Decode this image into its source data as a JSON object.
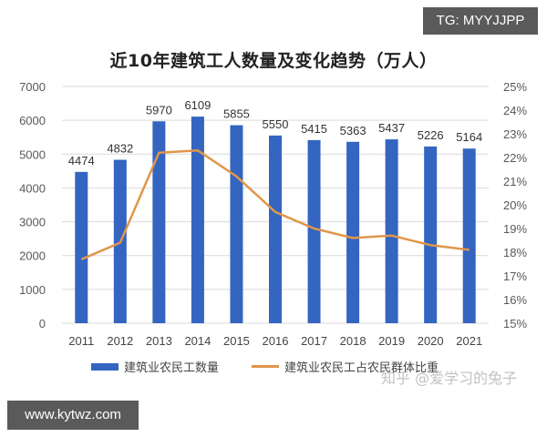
{
  "title": "近10年建筑工人数量及变化趋势（万人）",
  "badges": {
    "top_right": "TG: MYYJJPP",
    "bottom_left": "www.kytwz.com"
  },
  "watermark": "知乎 @爱学习的兔子",
  "colors": {
    "bar": "#3465c0",
    "line": "#e0964a",
    "grid": "#d9d9d9",
    "axis_text": "#595959"
  },
  "chart_data": {
    "type": "bar+line",
    "title": "近10年建筑工人数量及变化趋势（万人）",
    "categories": [
      "2011",
      "2012",
      "2013",
      "2014",
      "2015",
      "2016",
      "2017",
      "2018",
      "2019",
      "2020",
      "2021"
    ],
    "series": [
      {
        "name": "建筑业农民工数量",
        "type": "bar",
        "axis": "left",
        "values": [
          4474,
          4832,
          5970,
          6109,
          5855,
          5550,
          5415,
          5363,
          5437,
          5226,
          5164
        ]
      },
      {
        "name": "建筑业农民工占农民群体比重",
        "type": "line",
        "axis": "right",
        "values": [
          17.7,
          18.4,
          22.2,
          22.3,
          21.2,
          19.7,
          19.0,
          18.6,
          18.7,
          18.3,
          18.1
        ]
      }
    ],
    "left_axis": {
      "ylim": [
        0,
        7000
      ],
      "ticks": [
        "0",
        "1000",
        "2000",
        "3000",
        "4000",
        "5000",
        "6000",
        "7000"
      ]
    },
    "right_axis": {
      "ylim": [
        15,
        25
      ],
      "ticks": [
        "15%",
        "16%",
        "17%",
        "18%",
        "19%",
        "20%",
        "21%",
        "22%",
        "23%",
        "24%",
        "25%"
      ]
    },
    "xlabel": "",
    "ylabel": "",
    "grid": true,
    "legend_position": "bottom"
  },
  "legend": [
    {
      "label": "建筑业农民工数量",
      "kind": "bar"
    },
    {
      "label": "建筑业农民工占农民群体比重",
      "kind": "line"
    }
  ]
}
